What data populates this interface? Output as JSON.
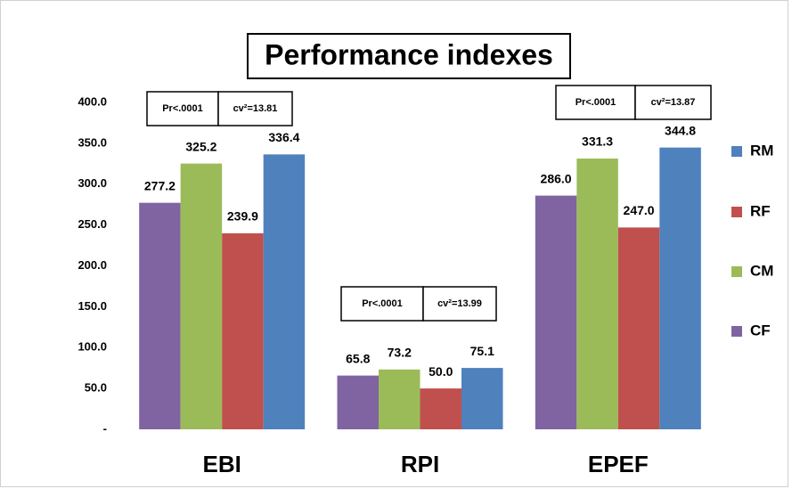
{
  "chart_data": {
    "type": "bar",
    "title": "Performance indexes",
    "categories": [
      "EBI",
      "RPI",
      "EPEF"
    ],
    "series": [
      {
        "name": "CF",
        "color": "#8064a2",
        "values": [
          277.2,
          65.8,
          286.0
        ],
        "value_labels": [
          "277.2",
          "65.8",
          "286.0"
        ]
      },
      {
        "name": "CM",
        "color": "#9bbb59",
        "values": [
          325.2,
          73.2,
          331.3
        ],
        "value_labels": [
          "325.2",
          "73.2",
          "331.3"
        ]
      },
      {
        "name": "RF",
        "color": "#c0504d",
        "values": [
          239.9,
          50.0,
          247.0
        ],
        "value_labels": [
          "239.9",
          "50.0",
          "247.0"
        ]
      },
      {
        "name": "RM",
        "color": "#4f81bd",
        "values": [
          336.4,
          75.1,
          344.8
        ],
        "value_labels": [
          "336.4",
          "75.1",
          "344.8"
        ]
      }
    ],
    "ylim": [
      0,
      400
    ],
    "yticks": [
      {
        "value": 0,
        "label": "-"
      },
      {
        "value": 50,
        "label": "50.0"
      },
      {
        "value": 100,
        "label": "100.0"
      },
      {
        "value": 150,
        "label": "150.0"
      },
      {
        "value": 200,
        "label": "200.0"
      },
      {
        "value": 250,
        "label": "250.0"
      },
      {
        "value": 300,
        "label": "300.0"
      },
      {
        "value": 350,
        "label": "350.0"
      },
      {
        "value": 400,
        "label": "400.0"
      }
    ],
    "grid": false,
    "legend": "right",
    "annotations": [
      [
        "Pr<.0001",
        "cv²=13.81"
      ],
      [
        "Pr<.0001",
        "cv²=13.99"
      ],
      [
        "Pr<.0001",
        "cv²=13.87"
      ]
    ]
  }
}
